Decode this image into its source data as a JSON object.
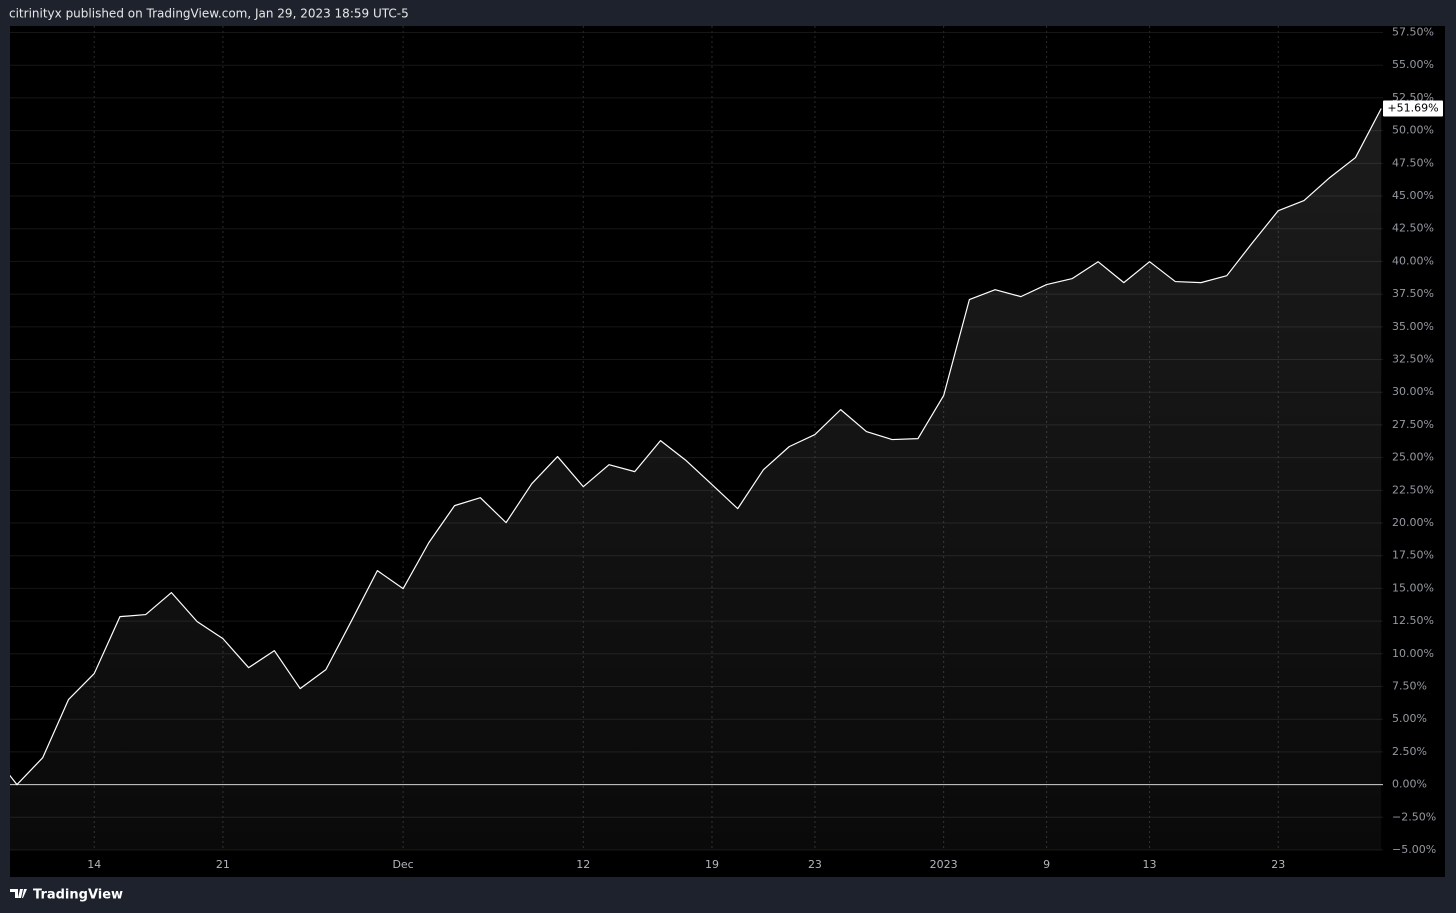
{
  "header": {
    "text": "citrinityx published on TradingView.com, Jan 29, 2023 18:59 UTC-5"
  },
  "footer": {
    "brand": "TradingView"
  },
  "chart_data": {
    "type": "line",
    "categories": [
      null,
      null,
      null,
      null,
      "14",
      null,
      null,
      null,
      null,
      "21",
      null,
      null,
      null,
      null,
      null,
      null,
      "Dec",
      null,
      null,
      null,
      null,
      null,
      null,
      "12",
      null,
      null,
      null,
      null,
      "19",
      null,
      null,
      null,
      "23",
      null,
      null,
      null,
      null,
      "2023",
      null,
      null,
      null,
      "9",
      null,
      null,
      null,
      "13",
      null,
      null,
      null,
      null,
      "23",
      null,
      null,
      null,
      null
    ],
    "series": [
      {
        "color": "#ffffff",
        "values": [
          2.5,
          0,
          2.06,
          6.5,
          8.49,
          12.84,
          13,
          14.68,
          12.46,
          11.16,
          8.94,
          10.24,
          7.34,
          8.79,
          12.54,
          16.36,
          14.98,
          18.5,
          21.33,
          21.94,
          20.03,
          23.01,
          25.08,
          22.78,
          24.46,
          23.93,
          26.3,
          24.77,
          22.94,
          21.1,
          24.08,
          25.84,
          26.76,
          28.67,
          26.99,
          26.38,
          26.45,
          29.74,
          37.08,
          37.84,
          37.31,
          38.23,
          38.69,
          39.98,
          38.38,
          39.98,
          38.46,
          38.38,
          38.91,
          41.44,
          43.88,
          44.65,
          46.41,
          47.94,
          51.69
        ],
        "value_labels": [
          null,
          null,
          null,
          null,
          null,
          null,
          null,
          null,
          null,
          null,
          null,
          null,
          null,
          null,
          null,
          null,
          null,
          null,
          null,
          null,
          null,
          null,
          null,
          null,
          null,
          null,
          null,
          null,
          null,
          null,
          null,
          null,
          null,
          null,
          null,
          null,
          null,
          null,
          null,
          null,
          null,
          null,
          null,
          null,
          null,
          null,
          null,
          null,
          null,
          null,
          null,
          null,
          null,
          null,
          "+51.69%"
        ]
      }
    ],
    "ylim": [
      -5,
      58
    ],
    "yticks": [
      {
        "value": -5,
        "label": "−5.00%"
      },
      {
        "value": -2.5,
        "label": "−2.50%"
      },
      {
        "value": 0,
        "label": "0.00%"
      },
      {
        "value": 2.5,
        "label": "2.50%"
      },
      {
        "value": 5,
        "label": "5.00%"
      },
      {
        "value": 7.5,
        "label": "7.50%"
      },
      {
        "value": 10,
        "label": "10.00%"
      },
      {
        "value": 12.5,
        "label": "12.50%"
      },
      {
        "value": 15,
        "label": "15.00%"
      },
      {
        "value": 17.5,
        "label": "17.50%"
      },
      {
        "value": 20,
        "label": "20.00%"
      },
      {
        "value": 22.5,
        "label": "22.50%"
      },
      {
        "value": 25,
        "label": "25.00%"
      },
      {
        "value": 27.5,
        "label": "27.50%"
      },
      {
        "value": 30,
        "label": "30.00%"
      },
      {
        "value": 32.5,
        "label": "32.50%"
      },
      {
        "value": 35,
        "label": "35.00%"
      },
      {
        "value": 37.5,
        "label": "37.50%"
      },
      {
        "value": 40,
        "label": "40.00%"
      },
      {
        "value": 42.5,
        "label": "42.50%"
      },
      {
        "value": 45,
        "label": "45.00%"
      },
      {
        "value": 47.5,
        "label": "47.50%"
      },
      {
        "value": 50,
        "label": "50.00%"
      },
      {
        "value": 52.5,
        "label": "52.50%"
      },
      {
        "value": 55,
        "label": "55.00%"
      },
      {
        "value": 57.5,
        "label": "57.50%"
      }
    ],
    "grid": true,
    "baseline": 0,
    "area_fill": true
  }
}
